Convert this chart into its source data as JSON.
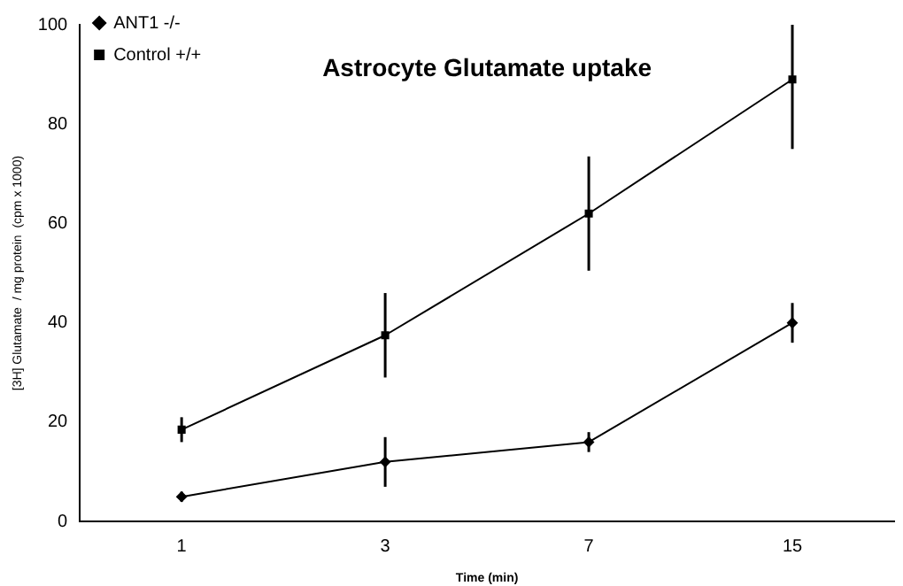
{
  "chart_data": {
    "type": "line",
    "title": "Astrocyte Glutamate uptake",
    "xlabel": "Time (min)",
    "ylabel": "[3H] Glutamate  / mg protein  (cpm x 1000)",
    "categories": [
      "1",
      "3",
      "7",
      "15"
    ],
    "series": [
      {
        "name": "ANT1 -/-",
        "color": "#000000",
        "marker": "diamond",
        "values": [
          5,
          12,
          16,
          40
        ],
        "errors": [
          1,
          5,
          2,
          4
        ]
      },
      {
        "name": "Control +/+",
        "color": "#000000",
        "marker": "square",
        "values": [
          18.5,
          37.5,
          62,
          89
        ],
        "errors": [
          2.5,
          8.5,
          11.5,
          [
            75,
            100
          ]
        ]
      }
    ],
    "ylim": [
      0,
      100
    ],
    "yticks": [
      0,
      20,
      40,
      60,
      80,
      100
    ],
    "grid": false,
    "legend": "top left",
    "line_style": "solid"
  }
}
